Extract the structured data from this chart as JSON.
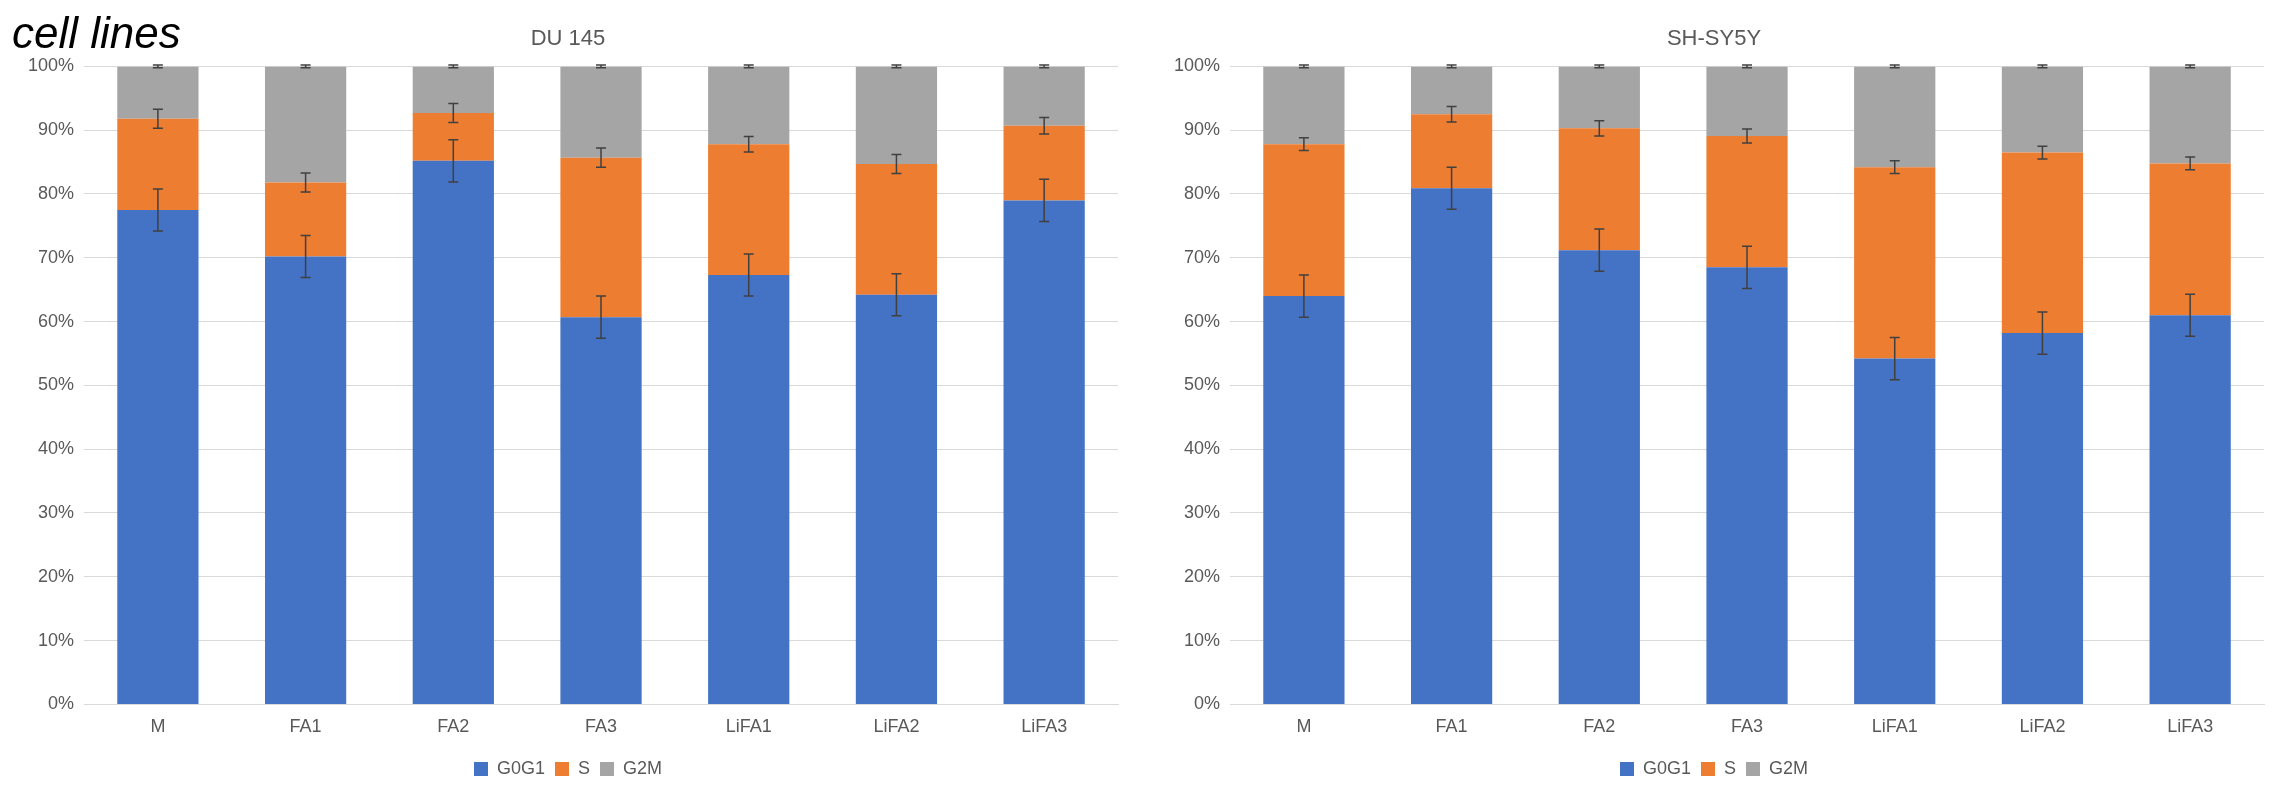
{
  "chart_data": [
    {
      "type": "bar",
      "title": "DU 145",
      "annotations": [
        "cell lines"
      ],
      "stacked": true,
      "grid": "y",
      "legend": "bottom",
      "categories": [
        "M",
        "FA1",
        "FA2",
        "FA3",
        "LiFA1",
        "LiFA2",
        "LiFA3"
      ],
      "ylim": [
        0,
        100
      ],
      "yticks": [
        {
          "value": 0,
          "label": "0%"
        },
        {
          "value": 10,
          "label": "10%"
        },
        {
          "value": 20,
          "label": "20%"
        },
        {
          "value": 30,
          "label": "30%"
        },
        {
          "value": 40,
          "label": "40%"
        },
        {
          "value": 50,
          "label": "50%"
        },
        {
          "value": 60,
          "label": "60%"
        },
        {
          "value": 70,
          "label": "70%"
        },
        {
          "value": 80,
          "label": "80%"
        },
        {
          "value": 90,
          "label": "90%"
        },
        {
          "value": 100,
          "label": "100%"
        }
      ],
      "series": [
        {
          "name": "G0G1",
          "color": "#4472c4",
          "values": [
            77.5,
            70.2,
            85.2,
            60.7,
            67.3,
            64.2,
            79.0
          ],
          "errors": [
            3.3,
            3.3,
            3.3,
            3.3,
            3.3,
            3.3,
            3.3
          ]
        },
        {
          "name": "S",
          "color": "#ed7d31",
          "values": [
            14.3,
            11.6,
            7.5,
            25.0,
            20.5,
            20.5,
            11.7
          ],
          "errors": [
            1.5,
            1.5,
            1.5,
            1.5,
            1.2,
            1.5,
            1.3
          ]
        },
        {
          "name": "G2M",
          "color": "#a5a5a5",
          "values": [
            8.2,
            18.2,
            7.3,
            14.3,
            12.2,
            15.3,
            9.3
          ],
          "errors": [
            0.2,
            0.2,
            0.2,
            0.2,
            0.2,
            0.2,
            0.2
          ]
        }
      ]
    },
    {
      "type": "bar",
      "title": "SH-SY5Y",
      "stacked": true,
      "grid": "y",
      "legend": "bottom",
      "categories": [
        "M",
        "FA1",
        "FA2",
        "FA3",
        "LiFA1",
        "LiFA2",
        "LiFA3"
      ],
      "ylim": [
        0,
        100
      ],
      "yticks": [
        {
          "value": 0,
          "label": "0%"
        },
        {
          "value": 10,
          "label": "10%"
        },
        {
          "value": 20,
          "label": "20%"
        },
        {
          "value": 30,
          "label": "30%"
        },
        {
          "value": 40,
          "label": "40%"
        },
        {
          "value": 50,
          "label": "50%"
        },
        {
          "value": 60,
          "label": "60%"
        },
        {
          "value": 70,
          "label": "70%"
        },
        {
          "value": 80,
          "label": "80%"
        },
        {
          "value": 90,
          "label": "90%"
        },
        {
          "value": 100,
          "label": "100%"
        }
      ],
      "series": [
        {
          "name": "G0G1",
          "color": "#4472c4",
          "values": [
            64.0,
            80.9,
            71.2,
            68.5,
            54.2,
            58.2,
            61.0
          ],
          "errors": [
            3.3,
            3.3,
            3.3,
            3.3,
            3.3,
            3.3,
            3.3
          ]
        },
        {
          "name": "S",
          "color": "#ed7d31",
          "values": [
            23.8,
            11.6,
            19.1,
            20.6,
            30.0,
            28.3,
            23.8
          ],
          "errors": [
            1.0,
            1.2,
            1.2,
            1.1,
            1.0,
            1.0,
            1.0
          ]
        },
        {
          "name": "G2M",
          "color": "#a5a5a5",
          "values": [
            12.2,
            7.5,
            9.7,
            10.9,
            15.8,
            13.5,
            15.2
          ],
          "errors": [
            0.2,
            0.2,
            0.2,
            0.2,
            0.2,
            0.2,
            0.2
          ]
        }
      ]
    }
  ]
}
